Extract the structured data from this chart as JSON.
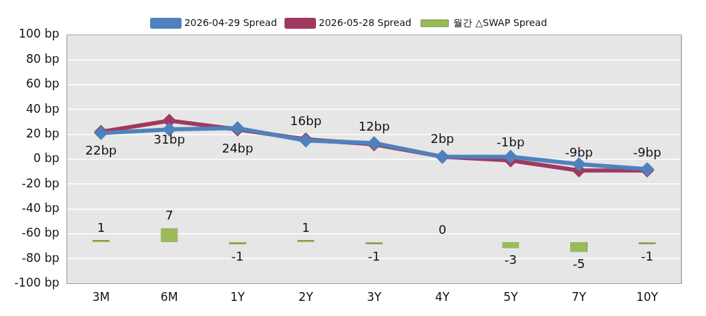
{
  "chart_data": {
    "type": "line",
    "categories": [
      "3M",
      "6M",
      "1Y",
      "2Y",
      "3Y",
      "4Y",
      "5Y",
      "7Y",
      "10Y"
    ],
    "series": [
      {
        "name": "월간 △SWAP Spread",
        "type": "bar",
        "axis": "y2",
        "color": "#9bbb59",
        "values": [
          1,
          7,
          -1,
          1,
          -1,
          0,
          -3,
          -5,
          -1
        ],
        "value_labels": [
          "1",
          "7",
          "-1",
          "1",
          "-1",
          "0",
          "-3",
          "-5",
          "-1"
        ]
      },
      {
        "name": "2026-04-29 Spread",
        "color": "#4f81bd",
        "values": [
          21,
          24,
          25,
          15,
          13,
          2,
          2,
          -4,
          -8
        ]
      },
      {
        "name": "2026-05-28 Spread",
        "color": "#a0395f",
        "values": [
          22,
          31,
          24,
          16,
          12,
          2,
          -1,
          -9,
          -9
        ],
        "value_labels": [
          "22bp",
          "31bp",
          "24bp",
          "16bp",
          "12bp",
          "2bp",
          "-1bp",
          "-9bp",
          "-9bp"
        ]
      }
    ],
    "ylim": [
      -100,
      100
    ],
    "yticks": [
      {
        "value": 100,
        "label": "100 bp"
      },
      {
        "value": 80,
        "label": "80 bp"
      },
      {
        "value": 60,
        "label": "60 bp"
      },
      {
        "value": 40,
        "label": "40 bp"
      },
      {
        "value": 20,
        "label": "20 bp"
      },
      {
        "value": 0,
        "label": "0 bp"
      },
      {
        "value": -20,
        "label": "-20 bp"
      },
      {
        "value": -40,
        "label": "-40 bp"
      },
      {
        "value": -60,
        "label": "-60 bp"
      },
      {
        "value": -80,
        "label": "-80 bp"
      },
      {
        "value": -100,
        "label": "-100 bp"
      }
    ],
    "grid": "y",
    "legend": "top",
    "marker": "diamond",
    "line_style": "solid"
  }
}
